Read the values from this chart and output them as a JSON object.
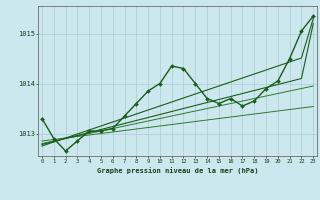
{
  "title": "Graphe pression niveau de la mer (hPa)",
  "bg_color": "#cce8ee",
  "grid_color": "#aaccd4",
  "line_color_dark": "#1a5c1a",
  "line_color_mid": "#2d7a2d",
  "xticks": [
    0,
    1,
    2,
    3,
    4,
    5,
    6,
    7,
    8,
    9,
    10,
    11,
    12,
    13,
    14,
    15,
    16,
    17,
    18,
    19,
    20,
    21,
    22,
    23
  ],
  "yticks": [
    1013,
    1014,
    1015
  ],
  "ylim": [
    1012.55,
    1015.55
  ],
  "xlim": [
    -0.3,
    23.3
  ],
  "main_series": [
    1013.3,
    1012.9,
    1012.65,
    1012.85,
    1013.05,
    1013.05,
    1013.1,
    1013.35,
    1013.6,
    1013.85,
    1014.0,
    1014.35,
    1014.3,
    1014.0,
    1013.7,
    1013.6,
    1013.7,
    1013.55,
    1013.65,
    1013.9,
    1014.05,
    1014.5,
    1015.05,
    1015.35
  ],
  "trend1": [
    1012.85,
    1012.88,
    1012.91,
    1012.94,
    1012.97,
    1013.0,
    1013.03,
    1013.06,
    1013.09,
    1013.12,
    1013.15,
    1013.18,
    1013.21,
    1013.24,
    1013.27,
    1013.3,
    1013.33,
    1013.36,
    1013.39,
    1013.42,
    1013.45,
    1013.48,
    1013.51,
    1013.54
  ],
  "trend2": [
    1012.8,
    1012.85,
    1012.9,
    1012.95,
    1013.0,
    1013.05,
    1013.1,
    1013.15,
    1013.2,
    1013.25,
    1013.3,
    1013.35,
    1013.4,
    1013.45,
    1013.5,
    1013.55,
    1013.6,
    1013.65,
    1013.7,
    1013.75,
    1013.8,
    1013.85,
    1013.9,
    1013.95
  ],
  "trend3": [
    1012.75,
    1012.83,
    1012.91,
    1012.99,
    1013.07,
    1013.15,
    1013.23,
    1013.31,
    1013.39,
    1013.47,
    1013.55,
    1013.63,
    1013.71,
    1013.79,
    1013.87,
    1013.95,
    1014.03,
    1014.11,
    1014.19,
    1014.27,
    1014.35,
    1014.43,
    1014.51,
    1015.3
  ],
  "trend4": [
    1012.78,
    1012.84,
    1012.9,
    1012.96,
    1013.02,
    1013.08,
    1013.14,
    1013.2,
    1013.26,
    1013.32,
    1013.38,
    1013.44,
    1013.5,
    1013.56,
    1013.62,
    1013.68,
    1013.74,
    1013.8,
    1013.86,
    1013.92,
    1013.98,
    1014.04,
    1014.1,
    1015.2
  ]
}
